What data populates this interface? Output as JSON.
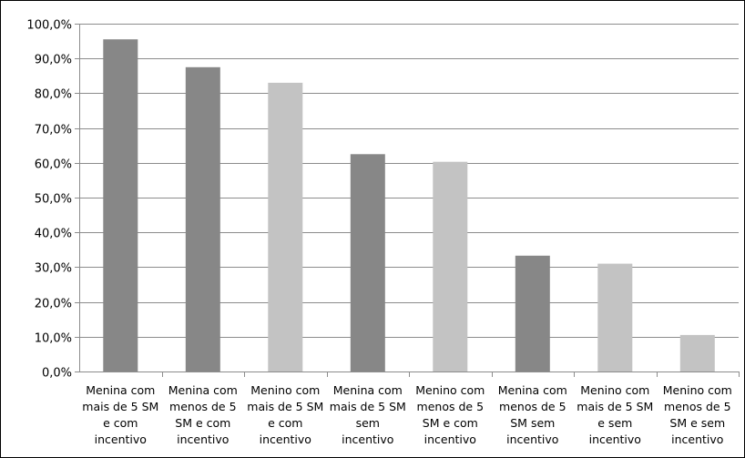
{
  "chart_data": {
    "type": "bar",
    "title": "",
    "xlabel": "",
    "ylabel": "",
    "ylim": [
      0,
      100
    ],
    "y_ticks": [
      "0,0%",
      "10,0%",
      "20,0%",
      "30,0%",
      "40,0%",
      "50,0%",
      "60,0%",
      "70,0%",
      "80,0%",
      "90,0%",
      "100,0%"
    ],
    "grid": true,
    "legend": "none",
    "categories": [
      [
        "Menina com",
        "mais de 5 SM",
        "e com",
        "incentivo"
      ],
      [
        "Menina com",
        "menos de 5",
        "SM e com",
        "incentivo"
      ],
      [
        "Menino com",
        "mais de 5 SM",
        "e com",
        "incentivo"
      ],
      [
        "Menina com",
        "mais de 5 SM",
        "sem",
        "incentivo"
      ],
      [
        "Menino com",
        "menos de 5",
        "SM e com",
        "incentivo"
      ],
      [
        "Menina com",
        "menos de 5",
        "SM sem",
        "incentivo"
      ],
      [
        "Menino com",
        "mais de 5 SM",
        "e sem",
        "incentivo"
      ],
      [
        "Menino com",
        "menos de 5",
        "SM e sem",
        "incentivo"
      ]
    ],
    "values": [
      95.5,
      87.5,
      83.0,
      62.5,
      60.3,
      33.3,
      31.0,
      10.5
    ],
    "bar_colors": [
      "#878787",
      "#878787",
      "#c3c3c3",
      "#878787",
      "#c3c3c3",
      "#878787",
      "#c3c3c3",
      "#c3c3c3"
    ],
    "colors": {
      "grid": "#8c8c8c",
      "axis": "#8c8c8c",
      "dark_bar": "#878787",
      "light_bar": "#c3c3c3"
    }
  }
}
